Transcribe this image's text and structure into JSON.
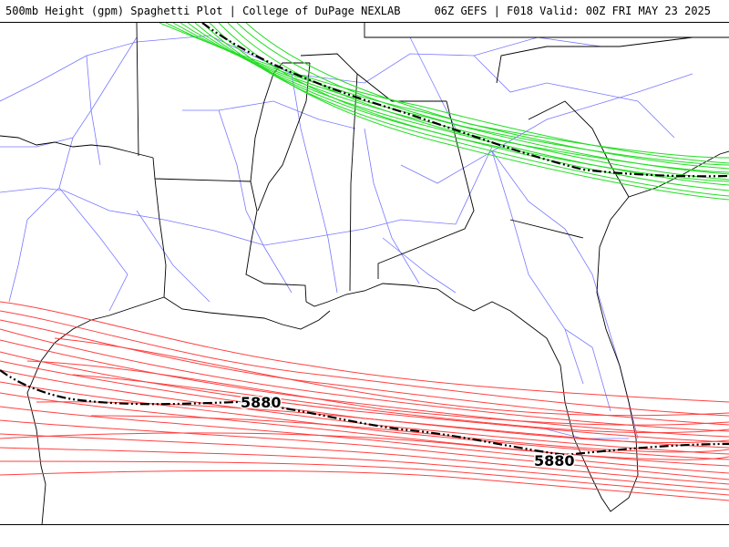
{
  "header": {
    "title": "500mb Height (gpm) Spaghetti Plot | College of DuPage NEXLAB",
    "run_info": "06Z GEFS | F018 Valid: 00Z FRI MAY 23 2025"
  },
  "map": {
    "contours": [
      {
        "level": "5880",
        "color": "#ff4040",
        "label_positions": [
          "mid-gulf",
          "south-florida"
        ]
      },
      {
        "level": "",
        "color": "#22dd22"
      }
    ],
    "labels": {
      "gulf": "5880",
      "florida": "5880"
    },
    "colors": {
      "roads": "#6a6aff",
      "borders": "#000000",
      "mean": "#000000"
    }
  }
}
